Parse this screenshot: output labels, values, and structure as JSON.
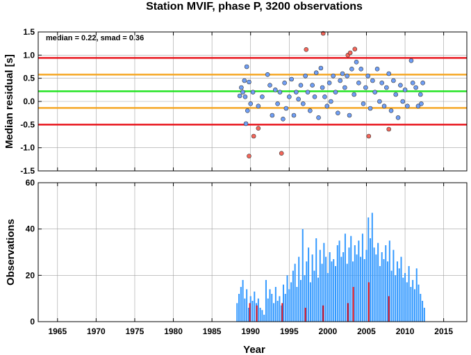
{
  "chart_data": [
    {
      "type": "scatter",
      "title": "Station MVIF, phase P, 3200 observations",
      "annotation": "median = 0.22, smad = 0.36",
      "ylabel": "Median residual [s]",
      "xlim": [
        1962.5,
        2018
      ],
      "ylim": [
        -1.5,
        1.5
      ],
      "xticks": [
        1965,
        1970,
        1975,
        1980,
        1985,
        1990,
        1995,
        2000,
        2005,
        2010,
        2015
      ],
      "yticks": [
        1.5,
        {
          "value": 1,
          "label": "1.0"
        },
        0.5,
        {
          "value": 0,
          "label": "0.0"
        },
        -0.5,
        {
          "value": -1,
          "label": "-1.0"
        },
        -1.5
      ],
      "grid": true,
      "lines": [
        {
          "value": 0.94,
          "color": "#e8141b"
        },
        {
          "value": 0.58,
          "color": "#f5a623"
        },
        {
          "value": 0.22,
          "color": "#22e322"
        },
        {
          "value": -0.14,
          "color": "#f5a623"
        },
        {
          "value": -0.5,
          "color": "#e8141b"
        }
      ],
      "series": [
        {
          "color": "#6f9ef5",
          "x": [
            1988.6,
            1988.8,
            1989,
            1989.2,
            1989.3,
            1989.5,
            1989.6,
            1989.4,
            1989.8,
            1990,
            1990.3,
            1991,
            1991.5,
            1992.2,
            1992.5,
            1992.8,
            1993.2,
            1993.5,
            1993.8,
            1994.2,
            1994.4,
            1994.6,
            1995,
            1995.3,
            1995.6,
            1995.9,
            1996.2,
            1996.5,
            1996.8,
            1997.1,
            1997.4,
            1997.7,
            1998,
            1998.3,
            1998.5,
            1998.8,
            1999.1,
            1999.3,
            1999.6,
            1999.9,
            2000.2,
            2000.4,
            2000.7,
            2001,
            2001.3,
            2001.6,
            2001.9,
            2002.2,
            2002.5,
            2002.8,
            2003.1,
            2003.4,
            2003.7,
            2004,
            2004.3,
            2004.6,
            2004.9,
            2005.2,
            2005.5,
            2005.8,
            2006.1,
            2006.4,
            2006.7,
            2007,
            2007.3,
            2007.6,
            2007.9,
            2008.2,
            2008.5,
            2008.8,
            2009.1,
            2009.4,
            2009.7,
            2010,
            2010.3,
            2010.8,
            2011,
            2011.4,
            2011.7,
            2012,
            2012.3,
            2012.1
          ],
          "values": [
            0.12,
            0.3,
            0.2,
            0.45,
            0.1,
            0.75,
            -0.2,
            -0.48,
            0.42,
            -0.05,
            0.2,
            -0.1,
            0.1,
            0.58,
            0.35,
            -0.3,
            0.25,
            -0.05,
            0.2,
            -0.38,
            0.4,
            -0.15,
            0.1,
            0.48,
            -0.3,
            0.2,
            0.05,
            0.35,
            -0.05,
            0.55,
            0.2,
            -0.2,
            0.35,
            0.1,
            0.62,
            -0.35,
            0.72,
            0.3,
            0.1,
            -0.1,
            0.4,
            0.0,
            0.55,
            0.2,
            -0.25,
            0.45,
            0.6,
            0.3,
            0.55,
            -0.3,
            0.7,
            0.15,
            0.85,
            0.4,
            0.7,
            -0.05,
            0.3,
            0.55,
            -0.15,
            0.45,
            0.2,
            0.7,
            0.0,
            0.4,
            -0.1,
            0.3,
            0.6,
            -0.2,
            0.45,
            0.15,
            -0.35,
            0.35,
            0.0,
            0.25,
            -0.1,
            0.88,
            0.4,
            0.3,
            -0.1,
            0.15,
            0.4,
            -0.05
          ]
        },
        {
          "color": "#f5665a",
          "x": [
            1989.8,
            1990.4,
            1991,
            1994,
            1997.2,
            1999.4,
            2002.6,
            2002.9,
            2003.5,
            2005.3,
            2007.9
          ],
          "values": [
            -1.18,
            -0.75,
            -0.58,
            -1.12,
            1.12,
            1.47,
            1.0,
            1.05,
            1.13,
            -0.75,
            -0.6
          ]
        }
      ]
    },
    {
      "type": "bar",
      "ylabel": "Observations",
      "xlabel": "Year",
      "xlim": [
        1962.5,
        2018
      ],
      "ylim": [
        0,
        60
      ],
      "xticks": [
        1965,
        1970,
        1975,
        1980,
        1985,
        1990,
        1995,
        2000,
        2005,
        2010,
        2015
      ],
      "yticks": [
        0,
        20,
        40,
        60
      ],
      "grid": true,
      "series": [
        {
          "color": "#3399ff",
          "x": [
            1988.25,
            1988.5,
            1988.75,
            1989,
            1989.25,
            1989.5,
            1989.75,
            1990,
            1990.25,
            1990.5,
            1990.75,
            1991,
            1991.25,
            1991.5,
            1991.75,
            1992,
            1992.25,
            1992.5,
            1992.75,
            1993,
            1993.25,
            1993.5,
            1993.75,
            1994,
            1994.25,
            1994.5,
            1994.75,
            1995,
            1995.25,
            1995.5,
            1995.75,
            1996,
            1996.25,
            1996.5,
            1996.75,
            1997,
            1997.25,
            1997.5,
            1997.75,
            1998,
            1998.25,
            1998.5,
            1998.75,
            1999,
            1999.25,
            1999.5,
            1999.75,
            2000,
            2000.25,
            2000.5,
            2000.75,
            2001,
            2001.25,
            2001.5,
            2001.75,
            2002,
            2002.25,
            2002.5,
            2002.75,
            2003,
            2003.25,
            2003.5,
            2003.75,
            2004,
            2004.25,
            2004.5,
            2004.75,
            2005,
            2005.25,
            2005.5,
            2005.75,
            2006,
            2006.25,
            2006.5,
            2006.75,
            2007,
            2007.25,
            2007.5,
            2007.75,
            2008,
            2008.25,
            2008.5,
            2008.75,
            2009,
            2009.25,
            2009.5,
            2009.75,
            2010,
            2010.25,
            2010.5,
            2010.75,
            2011,
            2011.25,
            2011.5,
            2011.75,
            2012,
            2012.25,
            2012.5
          ],
          "values": [
            8,
            12,
            15,
            18,
            10,
            14,
            6,
            11,
            9,
            13,
            8,
            10,
            6,
            5,
            3,
            18,
            10,
            14,
            12,
            8,
            15,
            9,
            11,
            7,
            16,
            12,
            20,
            14,
            17,
            22,
            25,
            15,
            28,
            18,
            40,
            20,
            26,
            32,
            17,
            29,
            22,
            36,
            19,
            31,
            25,
            34,
            28,
            21,
            30,
            26,
            27,
            24,
            33,
            35,
            28,
            30,
            38,
            25,
            32,
            37,
            26,
            33,
            29,
            35,
            28,
            38,
            27,
            31,
            45,
            36,
            47,
            32,
            29,
            34,
            24,
            30,
            27,
            33,
            26,
            35,
            22,
            31,
            20,
            26,
            23,
            28,
            19,
            21,
            17,
            24,
            15,
            18,
            14,
            23,
            16,
            12,
            9,
            6
          ]
        },
        {
          "color": "#e8141b",
          "x": [
            1989.9,
            1990.8,
            1994.1,
            1997.1,
            1999.4,
            2002.6,
            2003.3,
            2005.3,
            2007.9
          ],
          "values": [
            8,
            7,
            8,
            6,
            7,
            8,
            15,
            17,
            11
          ]
        }
      ]
    }
  ]
}
